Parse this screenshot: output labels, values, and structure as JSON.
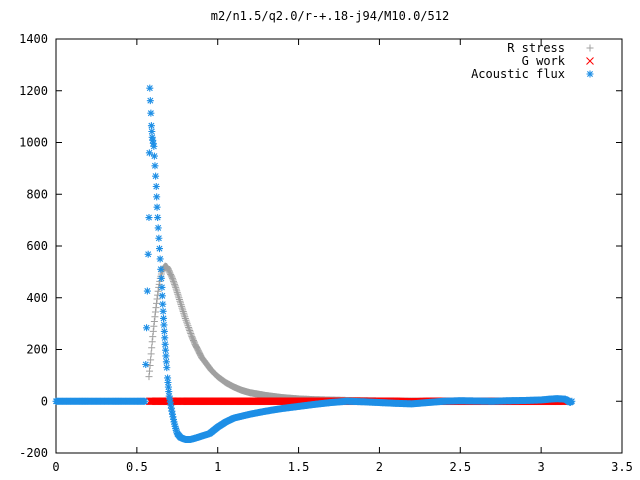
{
  "chart_data": {
    "type": "scatter",
    "title": "m2/n1.5/q2.0/r-+.18-j94/M10.0/512",
    "xlabel": "",
    "ylabel": "",
    "xlim": [
      0,
      3.5
    ],
    "ylim": [
      -200,
      1400
    ],
    "x_ticks": [
      "0",
      "0.5",
      "1",
      "1.5",
      "2",
      "2.5",
      "3",
      "3.5"
    ],
    "y_ticks": [
      "-200",
      "0",
      "200",
      "400",
      "600",
      "800",
      "1000",
      "1200",
      "1400"
    ],
    "grid": false,
    "legend_position": "top-right",
    "series": [
      {
        "name": "R stress",
        "color": "#a0a0a0",
        "marker": "plus",
        "points": [
          [
            0.575,
            95
          ],
          [
            0.585,
            160
          ],
          [
            0.595,
            230
          ],
          [
            0.605,
            290
          ],
          [
            0.615,
            345
          ],
          [
            0.625,
            395
          ],
          [
            0.635,
            440
          ],
          [
            0.645,
            475
          ],
          [
            0.655,
            500
          ],
          [
            0.665,
            515
          ],
          [
            0.675,
            522
          ],
          [
            0.685,
            520
          ],
          [
            0.695,
            510
          ],
          [
            0.705,
            495
          ],
          [
            0.72,
            475
          ],
          [
            0.74,
            440
          ],
          [
            0.76,
            400
          ],
          [
            0.78,
            360
          ],
          [
            0.8,
            320
          ],
          [
            0.82,
            285
          ],
          [
            0.84,
            250
          ],
          [
            0.86,
            220
          ],
          [
            0.88,
            195
          ],
          [
            0.9,
            170
          ],
          [
            0.93,
            145
          ],
          [
            0.96,
            120
          ],
          [
            1.0,
            95
          ],
          [
            1.05,
            72
          ],
          [
            1.1,
            55
          ],
          [
            1.15,
            42
          ],
          [
            1.2,
            33
          ],
          [
            1.3,
            22
          ],
          [
            1.4,
            14
          ],
          [
            1.5,
            9
          ],
          [
            1.6,
            6
          ],
          [
            1.8,
            3
          ],
          [
            2.0,
            1
          ],
          [
            2.3,
            0
          ],
          [
            2.6,
            0
          ],
          [
            2.9,
            0
          ],
          [
            3.1,
            0
          ],
          [
            3.18,
            0
          ]
        ]
      },
      {
        "name": "G work",
        "color": "#ff0000",
        "marker": "cross",
        "points": [
          [
            0.58,
            0
          ],
          [
            0.62,
            0
          ],
          [
            0.66,
            0
          ],
          [
            0.7,
            0
          ],
          [
            0.75,
            0
          ],
          [
            0.8,
            0
          ],
          [
            0.9,
            0
          ],
          [
            1.0,
            0
          ],
          [
            1.1,
            0
          ],
          [
            1.2,
            0
          ],
          [
            1.3,
            0
          ],
          [
            1.4,
            0
          ],
          [
            1.5,
            0
          ],
          [
            1.6,
            0
          ],
          [
            1.7,
            0
          ],
          [
            1.8,
            0
          ],
          [
            1.9,
            0
          ],
          [
            2.0,
            0
          ],
          [
            2.1,
            0
          ],
          [
            2.2,
            -2
          ],
          [
            2.3,
            0
          ],
          [
            2.4,
            0
          ],
          [
            2.5,
            0
          ],
          [
            2.6,
            0
          ],
          [
            2.7,
            0
          ],
          [
            2.8,
            0
          ],
          [
            2.9,
            0
          ],
          [
            3.0,
            0
          ],
          [
            3.1,
            0
          ],
          [
            3.15,
            0
          ]
        ]
      },
      {
        "name": "Acoustic flux",
        "color": "#1e8fe6",
        "marker": "star",
        "points": [
          [
            0.0,
            0
          ],
          [
            0.05,
            0
          ],
          [
            0.1,
            0
          ],
          [
            0.15,
            0
          ],
          [
            0.2,
            0
          ],
          [
            0.25,
            0
          ],
          [
            0.3,
            0
          ],
          [
            0.35,
            0
          ],
          [
            0.4,
            0
          ],
          [
            0.45,
            0
          ],
          [
            0.5,
            0
          ],
          [
            0.55,
            0
          ],
          [
            0.575,
            710
          ],
          [
            0.58,
            1210
          ],
          [
            0.59,
            1065
          ],
          [
            0.595,
            1020
          ],
          [
            0.605,
            985
          ],
          [
            0.612,
            910
          ],
          [
            0.62,
            830
          ],
          [
            0.625,
            750
          ],
          [
            0.632,
            670
          ],
          [
            0.64,
            590
          ],
          [
            0.648,
            510
          ],
          [
            0.655,
            440
          ],
          [
            0.66,
            375
          ],
          [
            0.665,
            320
          ],
          [
            0.67,
            270
          ],
          [
            0.675,
            220
          ],
          [
            0.68,
            175
          ],
          [
            0.685,
            130
          ],
          [
            0.69,
            90
          ],
          [
            0.695,
            55
          ],
          [
            0.7,
            20
          ],
          [
            0.71,
            -15
          ],
          [
            0.72,
            -50
          ],
          [
            0.73,
            -80
          ],
          [
            0.74,
            -105
          ],
          [
            0.75,
            -125
          ],
          [
            0.77,
            -140
          ],
          [
            0.8,
            -148
          ],
          [
            0.83,
            -148
          ],
          [
            0.86,
            -143
          ],
          [
            0.9,
            -135
          ],
          [
            0.95,
            -125
          ],
          [
            1.0,
            -100
          ],
          [
            1.05,
            -80
          ],
          [
            1.1,
            -65
          ],
          [
            1.2,
            -50
          ],
          [
            1.3,
            -38
          ],
          [
            1.4,
            -28
          ],
          [
            1.5,
            -20
          ],
          [
            1.6,
            -12
          ],
          [
            1.7,
            -5
          ],
          [
            1.8,
            0
          ],
          [
            1.9,
            -2
          ],
          [
            2.0,
            -5
          ],
          [
            2.1,
            -8
          ],
          [
            2.2,
            -10
          ],
          [
            2.3,
            -5
          ],
          [
            2.4,
            0
          ],
          [
            2.5,
            2
          ],
          [
            2.6,
            1
          ],
          [
            2.7,
            0
          ],
          [
            2.8,
            2
          ],
          [
            2.9,
            3
          ],
          [
            3.0,
            5
          ],
          [
            3.05,
            8
          ],
          [
            3.1,
            10
          ],
          [
            3.15,
            8
          ],
          [
            3.18,
            -5
          ],
          [
            3.19,
            0
          ]
        ]
      }
    ]
  }
}
